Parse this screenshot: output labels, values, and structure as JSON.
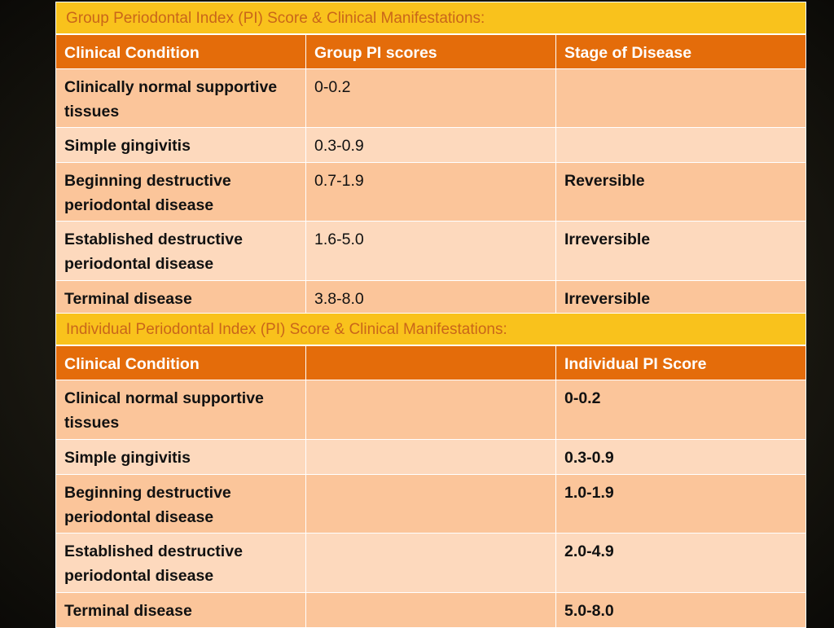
{
  "group_table": {
    "title": "Group Periodontal Index (PI) Score & Clinical Manifestations:",
    "header": [
      "Clinical Condition",
      "Group PI  scores",
      "Stage of Disease"
    ],
    "rows": [
      [
        "Clinically normal supportive tissues",
        "0-0.2",
        null
      ],
      [
        "Simple gingivitis",
        "0.3-0.9",
        null
      ],
      [
        "Beginning destructive periodontal disease",
        "0.7-1.9",
        "Reversible"
      ],
      [
        "Established destructive periodontal disease",
        "1.6-5.0",
        "Irreversible"
      ],
      [
        "Terminal disease",
        "3.8-8.0",
        "Irreversible"
      ]
    ]
  },
  "individual_table": {
    "title": "Individual Periodontal Index (PI) Score & Clinical Manifestations:",
    "header": [
      "Clinical Condition",
      null,
      "Individual PI Score"
    ],
    "rows": [
      [
        "Clinical normal supportive tissues",
        null,
        "0-0.2"
      ],
      [
        "Simple gingivitis",
        null,
        "0.3-0.9"
      ],
      [
        "Beginning destructive periodontal disease",
        null,
        "1.0-1.9"
      ],
      [
        "Established destructive periodontal disease",
        null,
        "2.0-4.9"
      ],
      [
        "Terminal disease",
        null,
        "5.0-8.0"
      ]
    ]
  }
}
